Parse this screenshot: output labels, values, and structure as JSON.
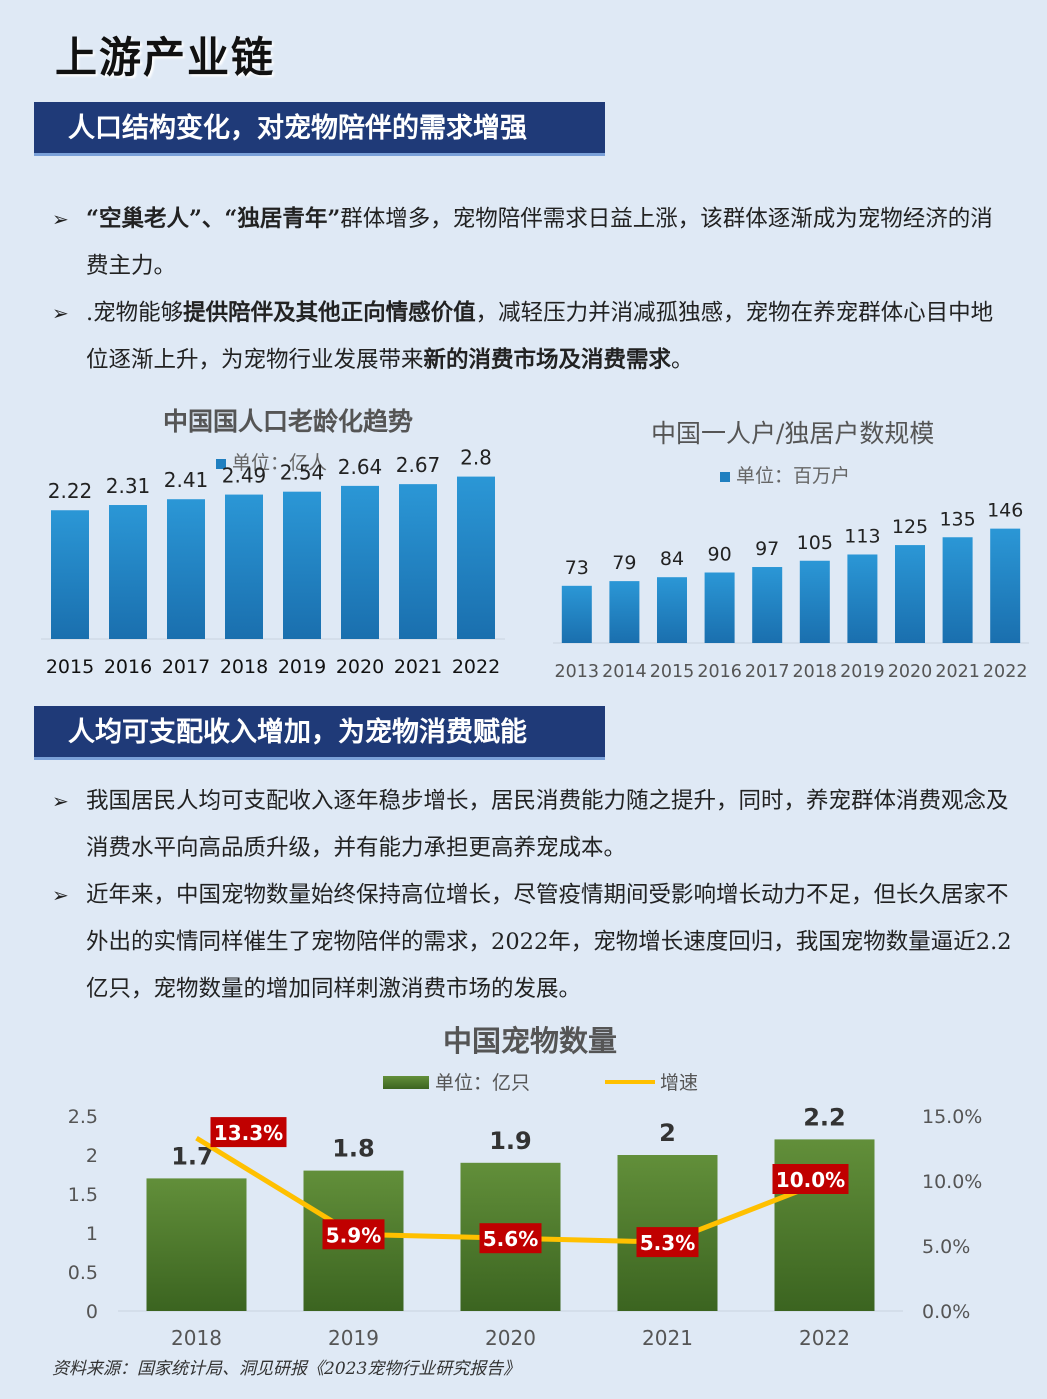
{
  "title": "上游产业链",
  "section1": {
    "banner": "人口结构变化，对宠物陪伴的需求增强",
    "bullets": [
      {
        "parts": [
          {
            "t": "“空巢老人”、“独居青年”",
            "b": true
          },
          {
            "t": "群体增多，宠物陪伴需求日益上涨，该群体逐渐成为宠物经济的消费主力。",
            "b": false
          }
        ]
      },
      {
        "parts": [
          {
            "t": ".宠物能够",
            "b": false
          },
          {
            "t": "提供陪伴及其他正向情感价值",
            "b": true
          },
          {
            "t": "，减轻压力并消减孤独感，宠物在养宠群体心目中地位逐渐上升，为宠物行业发展带来",
            "b": false
          },
          {
            "t": "新的消费市场及消费需求",
            "b": true
          },
          {
            "t": "。",
            "b": false
          }
        ]
      }
    ]
  },
  "section2": {
    "banner": "人均可支配收入增加，为宠物消费赋能",
    "bullets": [
      {
        "parts": [
          {
            "t": "我国居民人均可支配收入逐年稳步增长，居民消费能力随之提升，同时，养宠群体消费观念及消费水平向高品质升级，并有能力承担更高养宠成本。",
            "b": false
          }
        ]
      },
      {
        "parts": [
          {
            "t": "近年来，中国宠物数量始终保持高位增长，尽管疫情期间受影响增长动力不足，但长久居家不外出的实情同样催生了宠物陪伴的需求，2022年，宠物增长速度回归，我国宠物数量逼近2.2亿只，宠物数量的增加同样刺激消费市场的发展。",
            "b": false
          }
        ]
      }
    ]
  },
  "colors": {
    "banner": "#1f3a78",
    "blue_bar": "#1f7fc0",
    "green_bar": "#4e7d2c",
    "line": "#ffc000",
    "label_bg": "#c00000"
  },
  "chart_data": [
    {
      "type": "bar",
      "title": "中国国人口老龄化趋势",
      "legend": "单位：亿人",
      "categories": [
        "2015",
        "2016",
        "2017",
        "2018",
        "2019",
        "2020",
        "2021",
        "2022"
      ],
      "values": [
        2.22,
        2.31,
        2.41,
        2.49,
        2.54,
        2.64,
        2.67,
        2.8
      ],
      "ylim": [
        0,
        3
      ]
    },
    {
      "type": "bar",
      "title": "中国一人户/独居户数规模",
      "legend": "单位：百万户",
      "categories": [
        "2013",
        "2014",
        "2015",
        "2016",
        "2017",
        "2018",
        "2019",
        "2020",
        "2021",
        "2022"
      ],
      "values": [
        73,
        79,
        84,
        90,
        97,
        105,
        113,
        125,
        135,
        146
      ],
      "ylim": [
        0,
        180
      ]
    },
    {
      "type": "bar",
      "title": "中国宠物数量",
      "categories": [
        "2018",
        "2019",
        "2020",
        "2021",
        "2022"
      ],
      "series": [
        {
          "name": "单位：亿只",
          "type": "bar",
          "values": [
            1.7,
            1.8,
            1.9,
            2,
            2.2
          ]
        },
        {
          "name": "增速",
          "type": "line",
          "values": [
            13.3,
            5.9,
            5.6,
            5.3,
            10.0
          ],
          "labels": [
            "13.3%",
            "5.9%",
            "5.6%",
            "5.3%",
            "10.0%"
          ]
        }
      ],
      "y_left": {
        "ticks": [
          "0",
          "0.5",
          "1",
          "1.5",
          "2",
          "2.5"
        ],
        "range": [
          0,
          2.5
        ]
      },
      "y_right": {
        "ticks": [
          "0.0%",
          "5.0%",
          "10.0%",
          "15.0%"
        ],
        "range": [
          0,
          15
        ]
      }
    }
  ],
  "source": "资料来源：国家统计局、洞见研报《2023宠物行业研究报告》"
}
